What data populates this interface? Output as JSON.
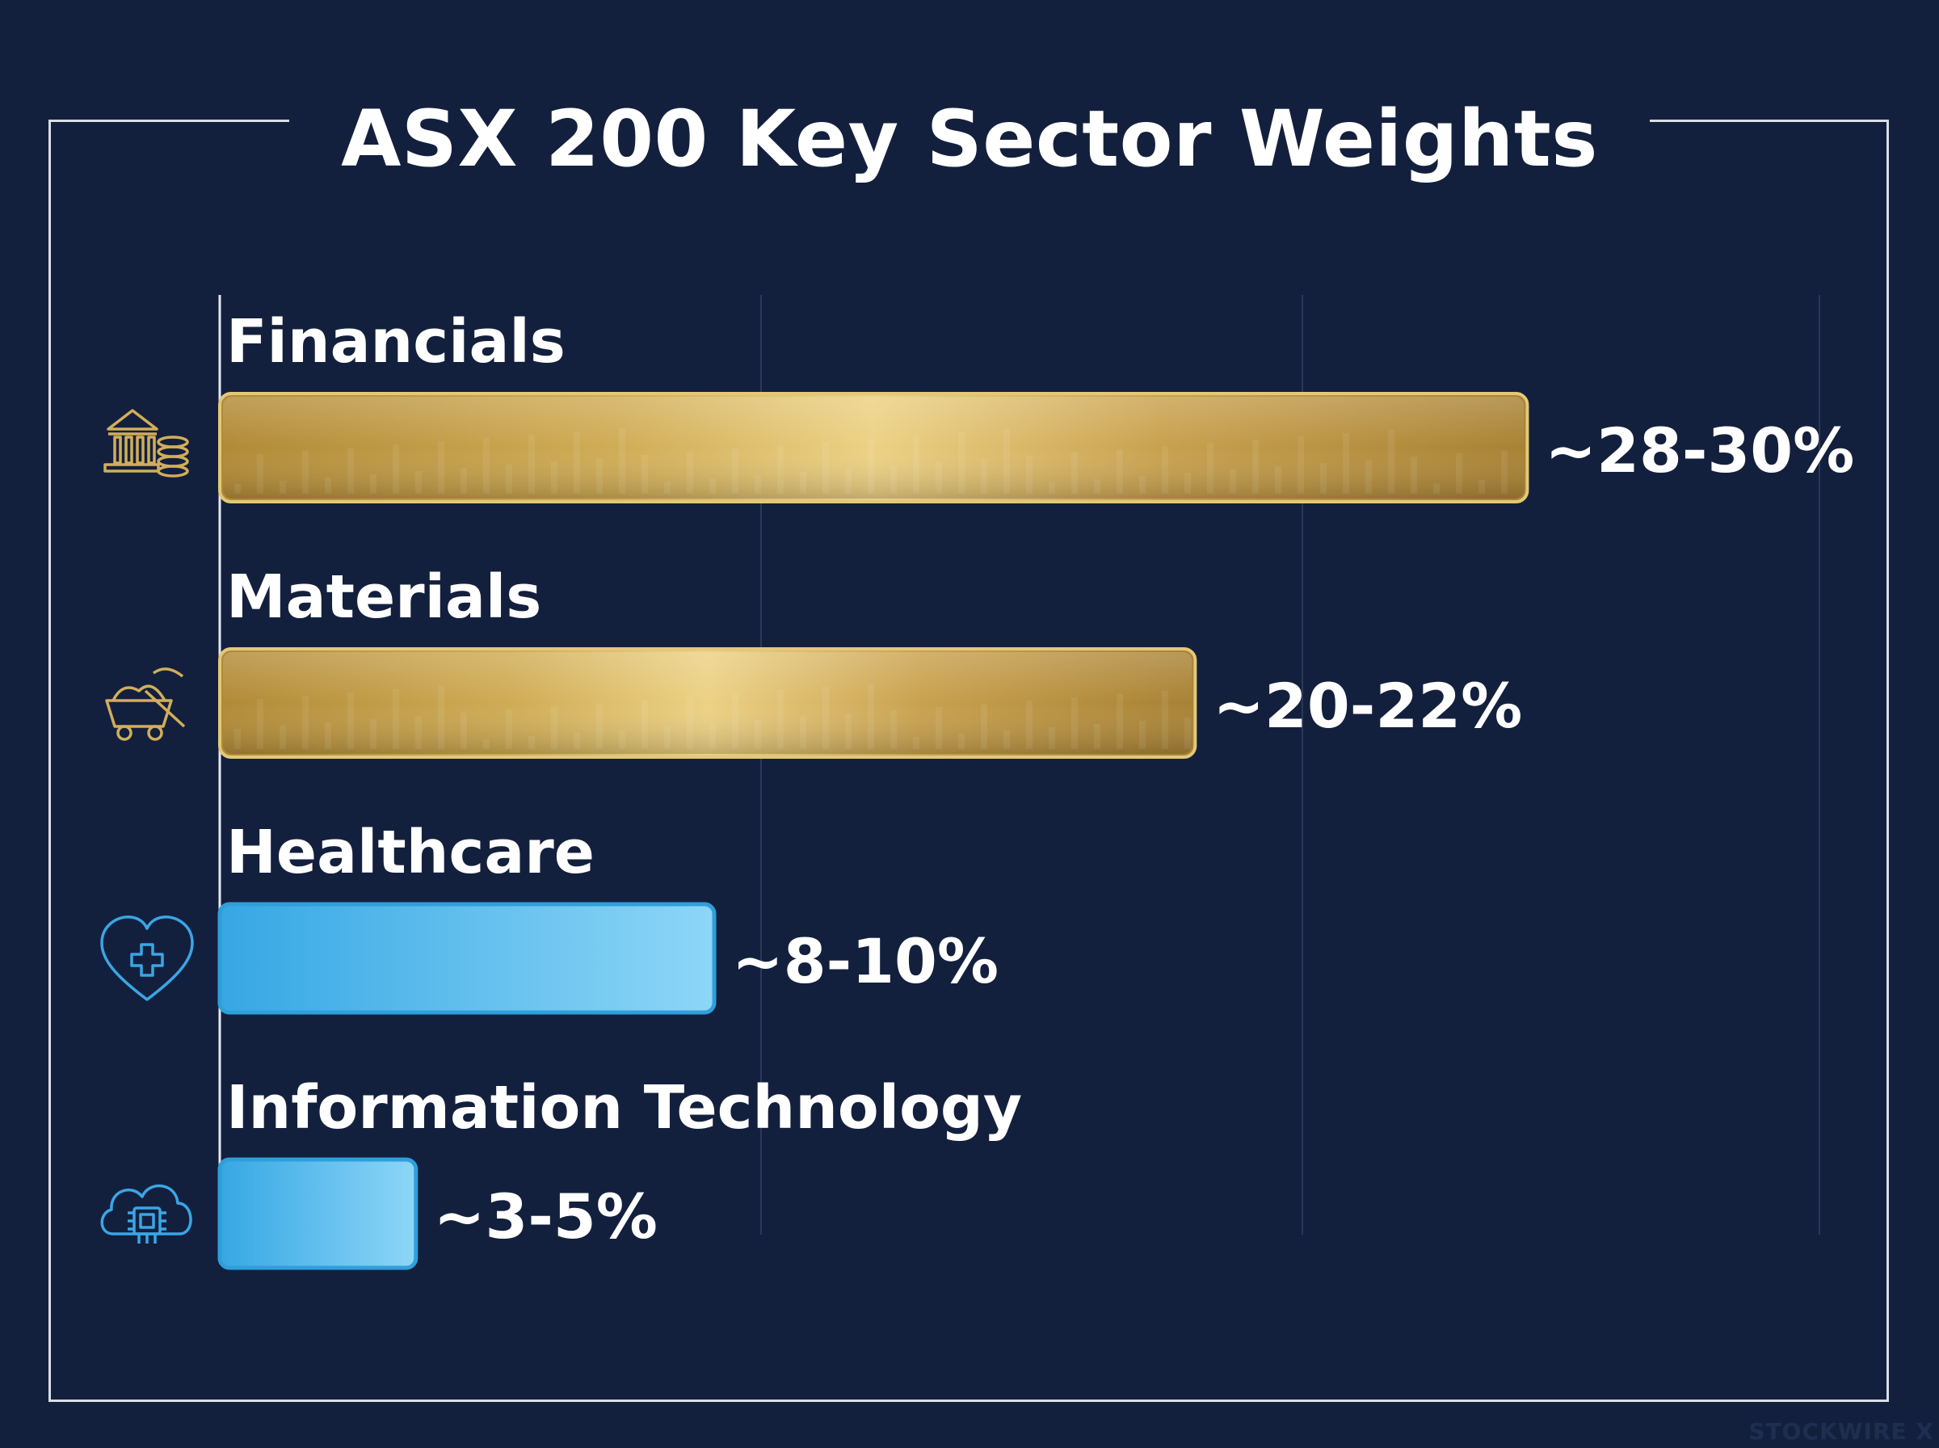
{
  "chart_data": {
    "type": "bar",
    "orientation": "horizontal",
    "title": "ASX 200 Key Sector Weights",
    "xlabel": "",
    "ylabel": "",
    "categories": [
      "Financials",
      "Materials",
      "Healthcare",
      "Information Technology"
    ],
    "values": [
      29,
      21,
      9,
      4
    ],
    "value_labels": [
      "~28-30%",
      "~20-22%",
      "~8-10%",
      "~3-5%"
    ],
    "icons": [
      "bank-coins-icon",
      "mining-cart-icon",
      "heart-cross-icon",
      "cloud-chip-icon"
    ],
    "bar_colors": [
      "#c9a54e",
      "#c9a54e",
      "#4fb6ea",
      "#4fb6ea"
    ],
    "xlim": [
      0,
      35
    ],
    "grid": true,
    "legend": "none"
  },
  "watermark": "STOCKWIRE X"
}
